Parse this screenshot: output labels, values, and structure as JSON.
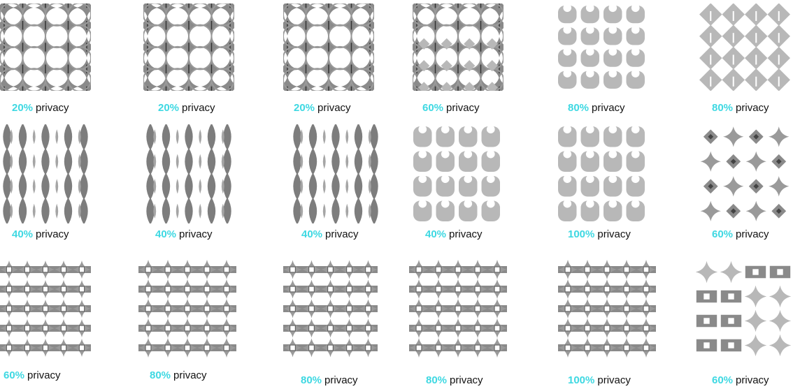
{
  "colors": {
    "accent": "#3ed8e2",
    "text": "#111111",
    "pattern_dark": "#6a6a6a",
    "pattern_light": "#b8b8b8"
  },
  "caption_word": "privacy",
  "rows": [
    {
      "cells": [
        {
          "pct": "20%",
          "style": "star-a",
          "grid": 4
        },
        {
          "pct": "20%",
          "style": "star-a",
          "grid": 4
        },
        {
          "pct": "20%",
          "style": "star-a",
          "grid": 4
        },
        {
          "pct": "60%",
          "style": "star-b",
          "grid": 4
        },
        {
          "pct": "80%",
          "style": "blob",
          "grid": 4
        },
        {
          "pct": "80%",
          "style": "diamond",
          "grid": 4
        }
      ]
    },
    {
      "cells": [
        {
          "pct": "40%",
          "style": "spindle",
          "grid": 4
        },
        {
          "pct": "40%",
          "style": "spindle",
          "grid": 4
        },
        {
          "pct": "40%",
          "style": "spindle",
          "grid": 4
        },
        {
          "pct": "40%",
          "style": "blob",
          "grid": 4
        },
        {
          "pct": "100%",
          "style": "blob",
          "grid": 4
        },
        {
          "pct": "60%",
          "style": "diamond-star",
          "grid": 4
        }
      ]
    },
    {
      "cells": [
        {
          "pct": "60%",
          "style": "lattice",
          "grid": 5
        },
        {
          "pct": "80%",
          "style": "lattice",
          "grid": 5
        },
        {
          "pct": "80%",
          "style": "lattice",
          "grid": 5
        },
        {
          "pct": "80%",
          "style": "lattice",
          "grid": 5
        },
        {
          "pct": "100%",
          "style": "lattice",
          "grid": 5
        },
        {
          "pct": "60%",
          "style": "mixed",
          "grid": 4
        }
      ]
    }
  ]
}
